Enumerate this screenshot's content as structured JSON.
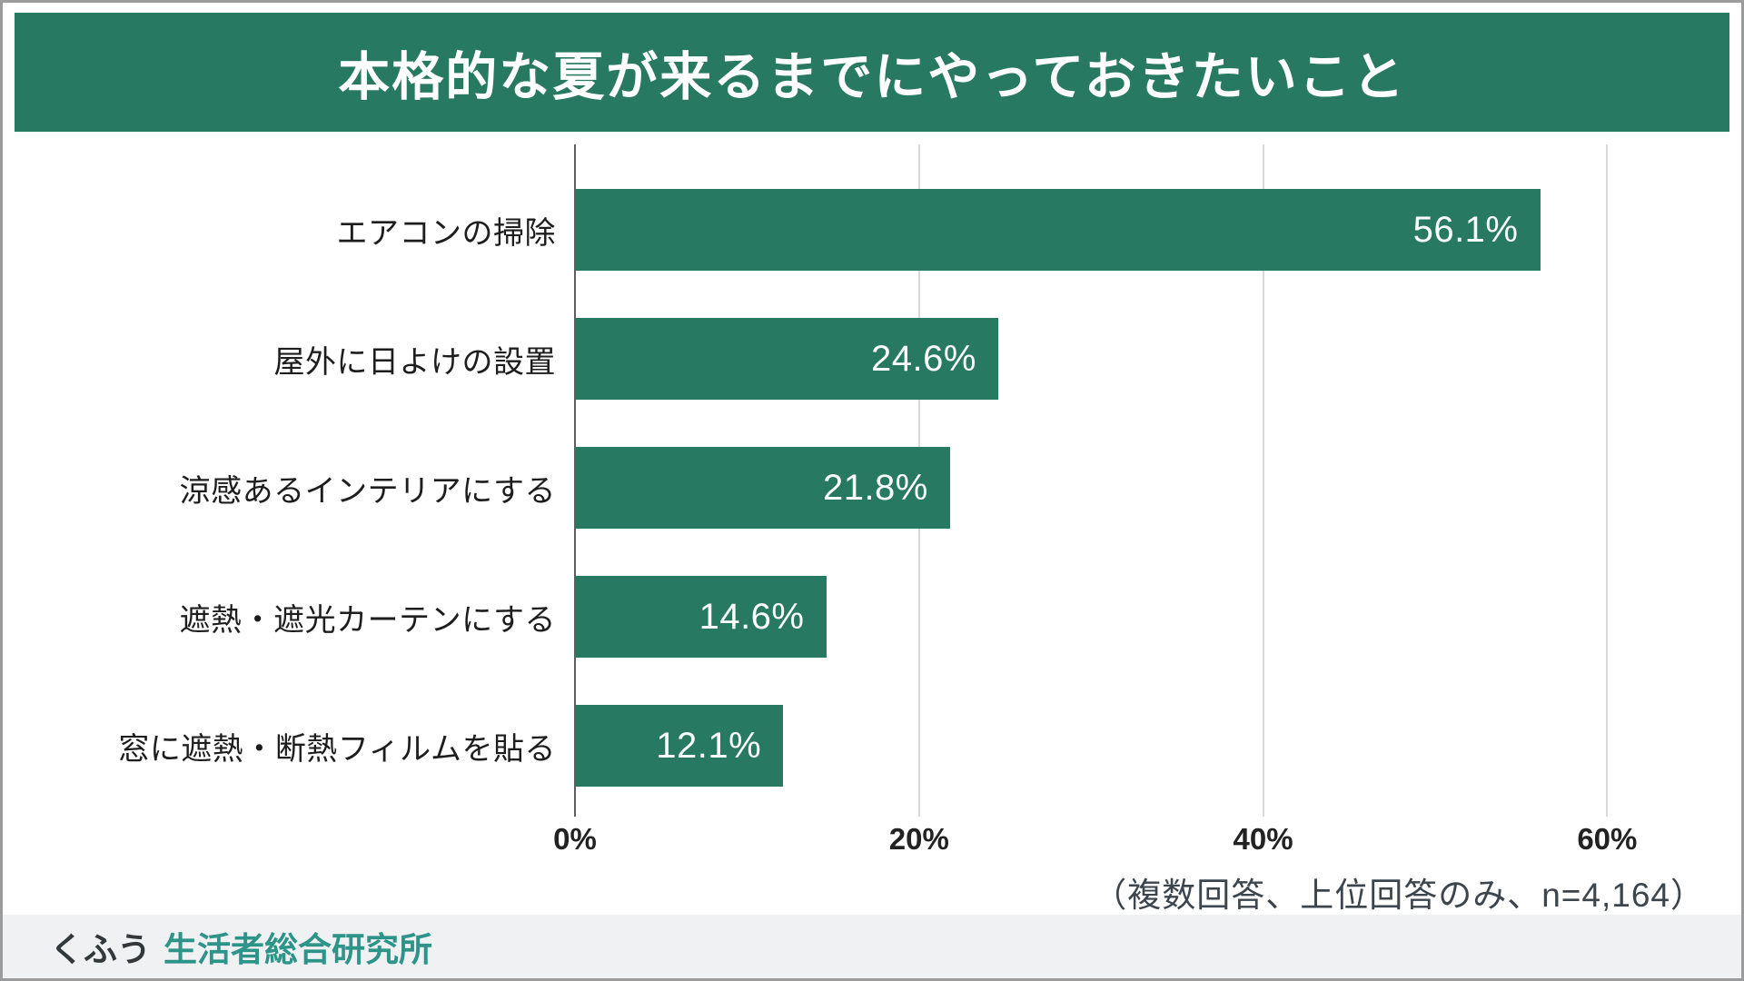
{
  "header": {
    "title": "本格的な夏が来るまでにやっておきたいこと"
  },
  "colors": {
    "banner_green": "#277A61",
    "bar_green": "#277A61",
    "grid_light": "#D9D9D9",
    "axis_dark": "#5F5F5F",
    "note_text": "#3C454C",
    "footer_bg": "#F0F1F2",
    "footer_prefix_dark": "#33383B",
    "footer_brand_teal": "#2D9489"
  },
  "chart_data": {
    "type": "bar",
    "orientation": "horizontal",
    "title": "本格的な夏が来るまでにやっておきたいこと",
    "categories": [
      "エアコンの掃除",
      "屋外に日よけの設置",
      "涼感あるインテリアにする",
      "遮熱・遮光カーテンにする",
      "窓に遮熱・断熱フィルムを貼る"
    ],
    "values": [
      56.1,
      24.6,
      21.8,
      14.6,
      12.1
    ],
    "value_labels": [
      "56.1%",
      "24.6%",
      "21.8%",
      "14.6%",
      "12.1%"
    ],
    "x_ticks": [
      "0%",
      "20%",
      "40%",
      "60%"
    ],
    "x_tick_values": [
      0,
      20,
      40,
      60
    ],
    "xlim": [
      0,
      66
    ],
    "xlabel": "",
    "ylabel": "",
    "grid": "vertical gridlines at ticks, dark axis at 0%",
    "legend": "none",
    "value_label_position": "inside-right"
  },
  "note": "（複数回答、上位回答のみ、n=4,164）",
  "footer": {
    "brand_prefix": "くふう",
    "brand_name": "生活者総合研究所"
  }
}
